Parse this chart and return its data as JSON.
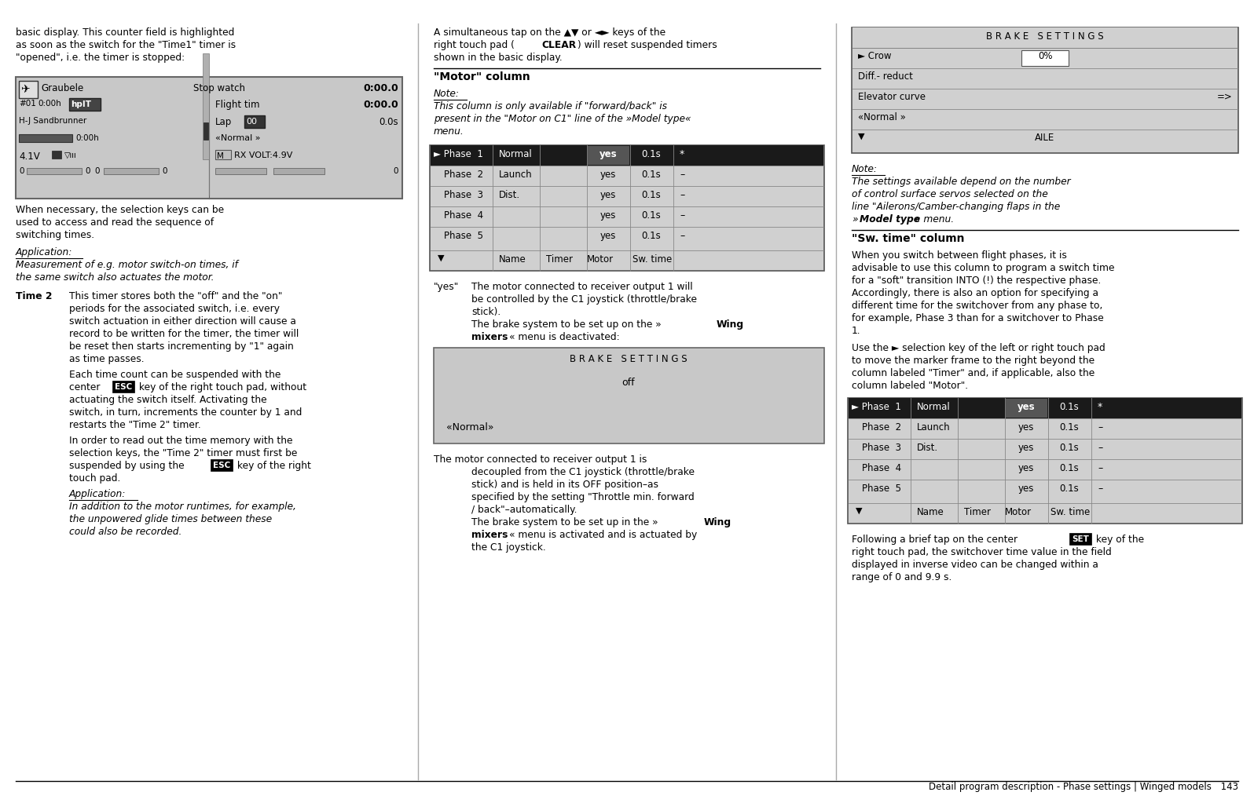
{
  "page_bg": "#ffffff",
  "footer": "Detail program description - Phase settings | Winged models 143",
  "col_div1": 0.333,
  "col_div2": 0.666,
  "phase_names": [
    "Normal",
    "Launch",
    "Dist.",
    "",
    ""
  ],
  "brake_settings_rows": [
    "B R A K E   S E T T I N G S",
    "Crow|0%",
    "Diff.- reduct",
    "Elevator curve|=>",
    "«Normal »",
    "▼|AILE"
  ],
  "brake_settings2_rows": [
    "B R A K E   S E T T I N G S",
    "off",
    "",
    "«Normal»"
  ]
}
